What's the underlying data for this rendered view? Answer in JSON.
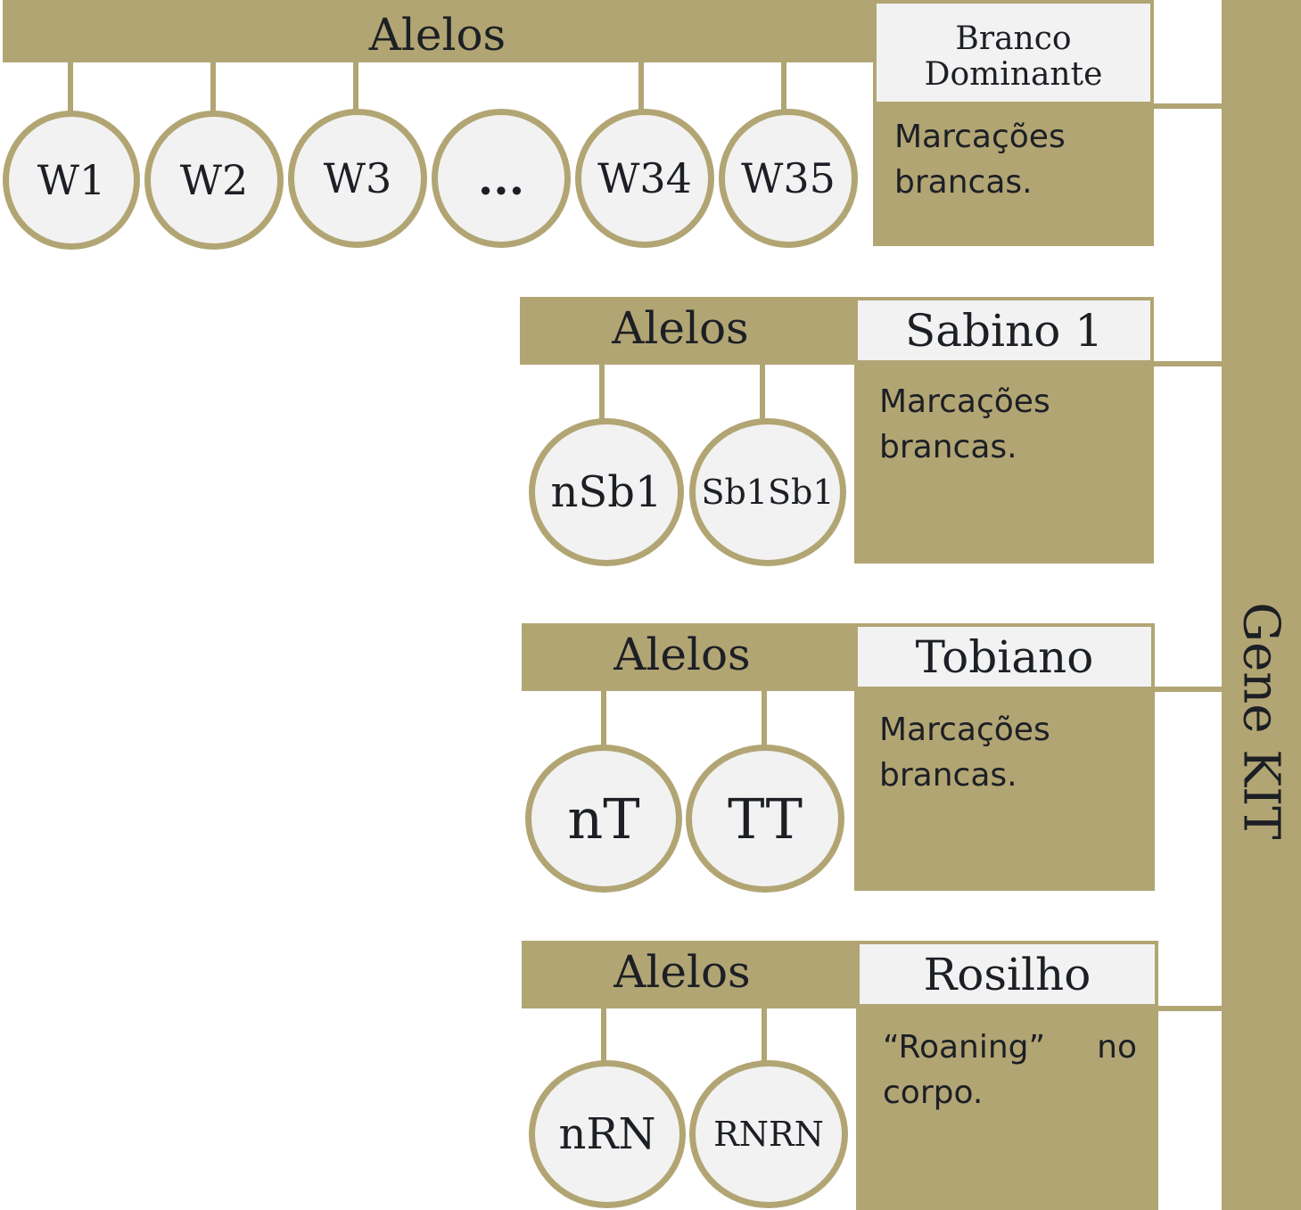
{
  "gene": {
    "label": "Gene KIT"
  },
  "groups": [
    {
      "name": "Branco Dominante",
      "alleles_label": "Alelos",
      "description": "Marcações brancas.",
      "alleles": [
        "W1",
        "W2",
        "W3",
        "...",
        "W34",
        "W35"
      ]
    },
    {
      "name": "Sabino 1",
      "alleles_label": "Alelos",
      "description": "Marcações brancas.",
      "alleles": [
        "nSb1",
        "Sb1Sb1"
      ]
    },
    {
      "name": "Tobiano",
      "alleles_label": "Alelos",
      "description": "Marcações brancas.",
      "alleles": [
        "nT",
        "TT"
      ]
    },
    {
      "name": "Rosilho",
      "alleles_label": "Alelos",
      "description": "“Roaning” no corpo.",
      "alleles": [
        "nRN",
        "RNRN"
      ]
    }
  ],
  "colors": {
    "accent": "#b2a574",
    "circle_fill": "#f2f2f2",
    "text": "#1c1f24"
  }
}
